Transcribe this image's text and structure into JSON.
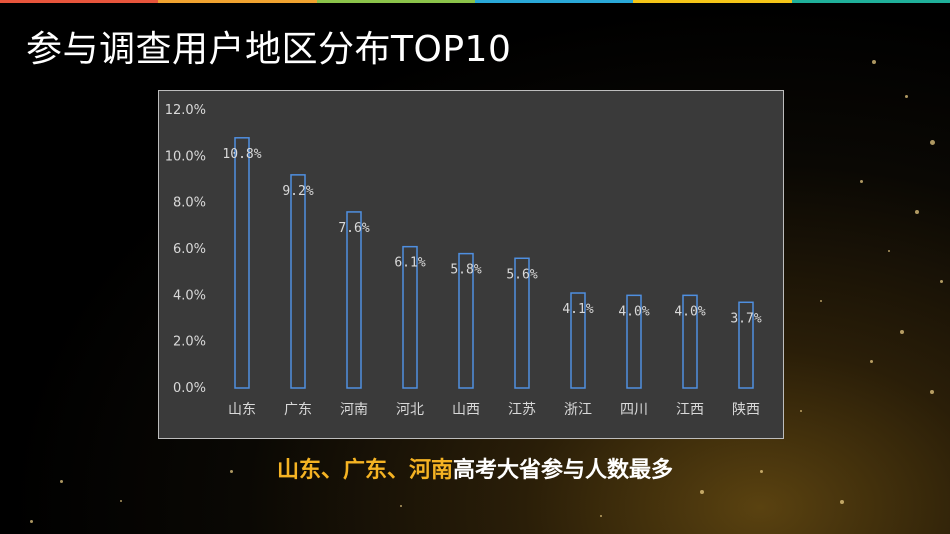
{
  "slide": {
    "title": "参与调查用户地区分布TOP10",
    "caption_highlight": "山东、广东、河南",
    "caption_rest": "高考大省参与人数最多"
  },
  "colors": {
    "strip": [
      "#e8553c",
      "#f0a330",
      "#8bc34a",
      "#2aa8d8",
      "#f5c518",
      "#1fb09a"
    ],
    "bar_stroke": "#4f8fe0",
    "highlight": "#f5b323"
  },
  "chart_data": {
    "type": "bar",
    "categories": [
      "山东",
      "广东",
      "河南",
      "河北",
      "山西",
      "江苏",
      "浙江",
      "四川",
      "江西",
      "陕西"
    ],
    "values": [
      10.8,
      9.2,
      7.6,
      6.1,
      5.8,
      5.6,
      4.1,
      4.0,
      4.0,
      3.7
    ],
    "data_labels": [
      "10.8%",
      "9.2%",
      "7.6%",
      "6.1%",
      "5.8%",
      "5.6%",
      "4.1%",
      "4.0%",
      "4.0%",
      "3.7%"
    ],
    "yticks": [
      0,
      2,
      4,
      6,
      8,
      10,
      12
    ],
    "ytick_labels": [
      "0.0%",
      "2.0%",
      "4.0%",
      "6.0%",
      "8.0%",
      "10.0%",
      "12.0%"
    ],
    "ylim": [
      0,
      12
    ],
    "grid": false,
    "legend": "none",
    "title": "",
    "xlabel": "",
    "ylabel": ""
  }
}
